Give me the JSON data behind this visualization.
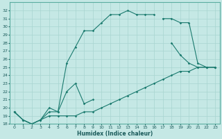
{
  "xlabel": "Humidex (Indice chaleur)",
  "xlim": [
    -0.5,
    23.5
  ],
  "ylim": [
    18,
    33
  ],
  "xticks": [
    0,
    1,
    2,
    3,
    4,
    5,
    6,
    7,
    8,
    9,
    10,
    11,
    12,
    13,
    14,
    15,
    16,
    17,
    18,
    19,
    20,
    21,
    22,
    23
  ],
  "yticks": [
    18,
    19,
    20,
    21,
    22,
    23,
    24,
    25,
    26,
    27,
    28,
    29,
    30,
    31,
    32
  ],
  "bg_color": "#c5e8e5",
  "grid_color": "#a8d4d0",
  "line_color": "#1a7a6e",
  "curves": [
    {
      "x": [
        0,
        1,
        2,
        3,
        4,
        5,
        6,
        7,
        8,
        9,
        10,
        11,
        12,
        13,
        14,
        15,
        16,
        17,
        18,
        19,
        20,
        21,
        22,
        23
      ],
      "y": [
        19.5,
        18.5,
        18.0,
        18.5,
        19.0,
        19.0,
        19.0,
        19.0,
        19.5,
        19.5,
        20.0,
        20.5,
        21.0,
        21.5,
        22.0,
        22.5,
        23.0,
        23.5,
        24.0,
        24.5,
        24.5,
        25.0,
        25.0,
        25.0
      ]
    },
    {
      "x": [
        0,
        1,
        2,
        3,
        4,
        5,
        6,
        7,
        8,
        9,
        10,
        11,
        12,
        13,
        14,
        15,
        16,
        17,
        18,
        19,
        20,
        21,
        22,
        23
      ],
      "y": [
        19.5,
        18.5,
        18.0,
        18.5,
        20.0,
        19.5,
        22.0,
        23.0,
        20.5,
        21.0,
        null,
        null,
        null,
        null,
        null,
        null,
        null,
        null,
        28.0,
        26.5,
        25.5,
        25.0,
        25.0,
        25.0
      ]
    },
    {
      "x": [
        0,
        1,
        2,
        3,
        4,
        5,
        6,
        7,
        8,
        9,
        10,
        11,
        12,
        13,
        14,
        15,
        16,
        17,
        18,
        19,
        20,
        21,
        22,
        23
      ],
      "y": [
        19.5,
        18.5,
        18.0,
        18.5,
        19.5,
        19.5,
        25.5,
        27.5,
        29.5,
        29.5,
        30.5,
        31.5,
        31.5,
        32.0,
        31.5,
        31.5,
        31.5,
        null,
        null,
        null,
        null,
        null,
        null,
        null
      ]
    },
    {
      "x": [
        0,
        1,
        2,
        3,
        4,
        5,
        6,
        7,
        8,
        9,
        10,
        11,
        12,
        13,
        14,
        15,
        16,
        17,
        18,
        19,
        20,
        21,
        22,
        23
      ],
      "y": [
        null,
        null,
        null,
        null,
        null,
        null,
        null,
        null,
        null,
        null,
        null,
        null,
        null,
        null,
        null,
        null,
        null,
        31.0,
        31.0,
        30.5,
        30.5,
        25.5,
        25.0,
        25.0
      ]
    }
  ]
}
